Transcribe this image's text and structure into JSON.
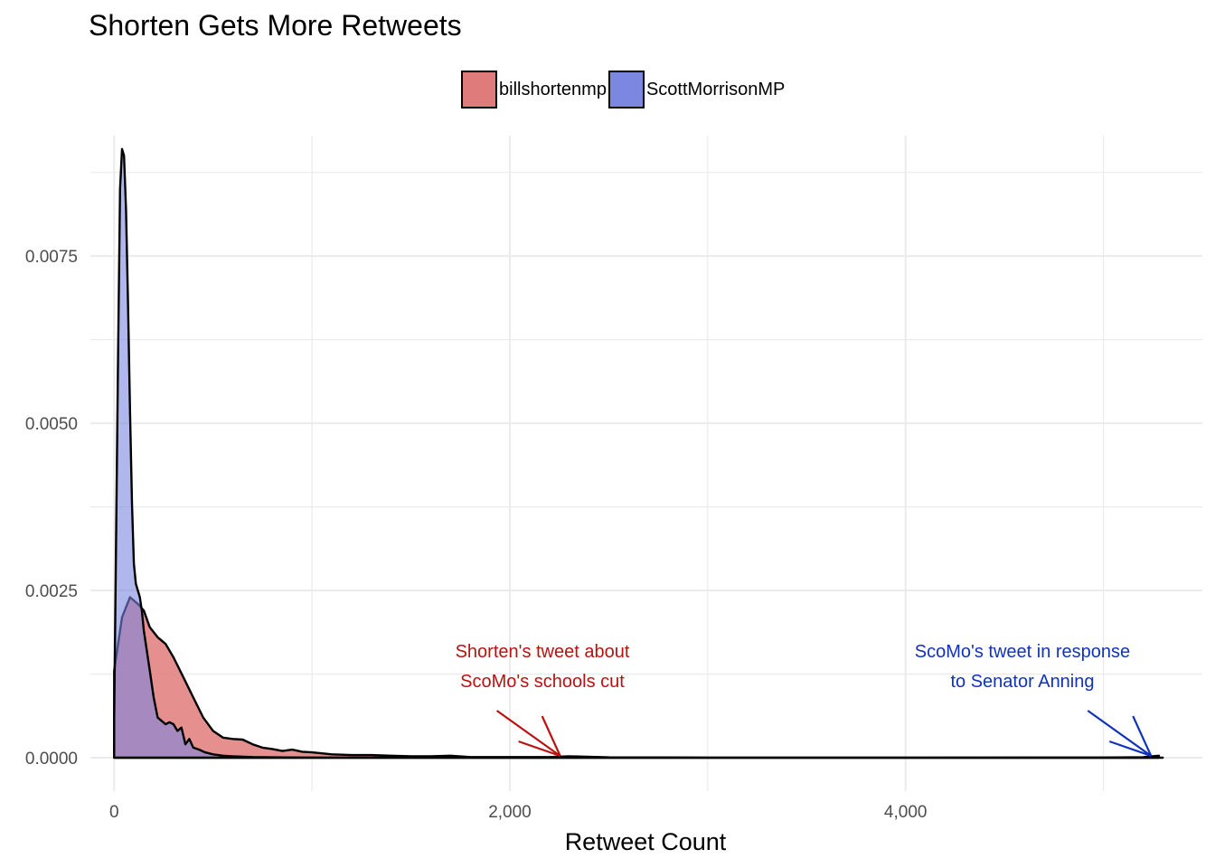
{
  "chart_data": {
    "type": "area",
    "title": "Shorten Gets More Retweets",
    "xlabel": "Retweet Count",
    "ylabel": "",
    "xlim": [
      -120,
      5500
    ],
    "ylim": [
      -0.0005,
      0.0093
    ],
    "x_ticks": [
      0,
      2000,
      4000
    ],
    "x_tick_labels": [
      "0",
      "2,000",
      "4,000"
    ],
    "y_ticks": [
      0,
      0.0025,
      0.005,
      0.0075
    ],
    "y_tick_labels": [
      "0.0000",
      "0.0025",
      "0.0050",
      "0.0075"
    ],
    "grid": true,
    "legend_position": "top",
    "series": [
      {
        "name": "billshortenmp",
        "color": "#e07b7b",
        "x": [
          0,
          40,
          80,
          120,
          150,
          180,
          220,
          260,
          300,
          350,
          400,
          450,
          500,
          550,
          600,
          650,
          700,
          750,
          800,
          850,
          900,
          950,
          1000,
          1100,
          1200,
          1300,
          1400,
          1500,
          1600,
          1700,
          1800,
          2000,
          2200,
          2300,
          2500,
          3000,
          4000,
          5300
        ],
        "y": [
          0.0013,
          0.0021,
          0.0024,
          0.0023,
          0.0022,
          0.00195,
          0.0018,
          0.0017,
          0.0015,
          0.0012,
          0.0009,
          0.0006,
          0.0004,
          0.0003,
          0.00028,
          0.00027,
          0.0002,
          0.00015,
          0.00013,
          0.0001,
          0.00012,
          9e-05,
          8e-05,
          5e-05,
          4e-05,
          4e-05,
          3e-05,
          2e-05,
          2e-05,
          3e-05,
          1e-05,
          1e-05,
          1e-05,
          2e-05,
          5e-06,
          2e-06,
          1e-06,
          0.0
        ]
      },
      {
        "name": "ScottMorrisonMP",
        "color": "#7b87e0",
        "x": [
          0,
          20,
          30,
          40,
          50,
          60,
          70,
          80,
          90,
          100,
          110,
          120,
          130,
          140,
          150,
          160,
          180,
          200,
          220,
          240,
          260,
          280,
          300,
          320,
          340,
          360,
          380,
          400,
          430,
          460,
          500,
          550,
          600,
          700,
          800,
          1000,
          2000,
          4000,
          5000,
          5200,
          5280
        ],
        "y": [
          0.0006,
          0.006,
          0.0085,
          0.0091,
          0.009,
          0.0082,
          0.0068,
          0.0052,
          0.0038,
          0.0029,
          0.0026,
          0.0025,
          0.0024,
          0.0022,
          0.0019,
          0.0017,
          0.0013,
          0.0009,
          0.0006,
          0.00055,
          0.0005,
          0.00053,
          0.0005,
          0.0004,
          0.00045,
          0.0002,
          0.00028,
          0.00015,
          0.00012,
          8e-05,
          5e-05,
          3e-05,
          2e-05,
          1e-05,
          5e-06,
          2e-06,
          1e-06,
          0.0,
          3e-06,
          8e-06,
          3e-05
        ]
      }
    ],
    "annotations": [
      {
        "lines": [
          "Shorten's tweet about",
          "ScoMo's schools cut"
        ],
        "color": "#bb1111",
        "x": 2100,
        "arrow_to_x": 2300
      },
      {
        "lines": [
          "ScoMo's tweet in response",
          "to Senator Anning"
        ],
        "color": "#1133bb",
        "x": 4600,
        "arrow_to_x": 5250
      }
    ]
  }
}
